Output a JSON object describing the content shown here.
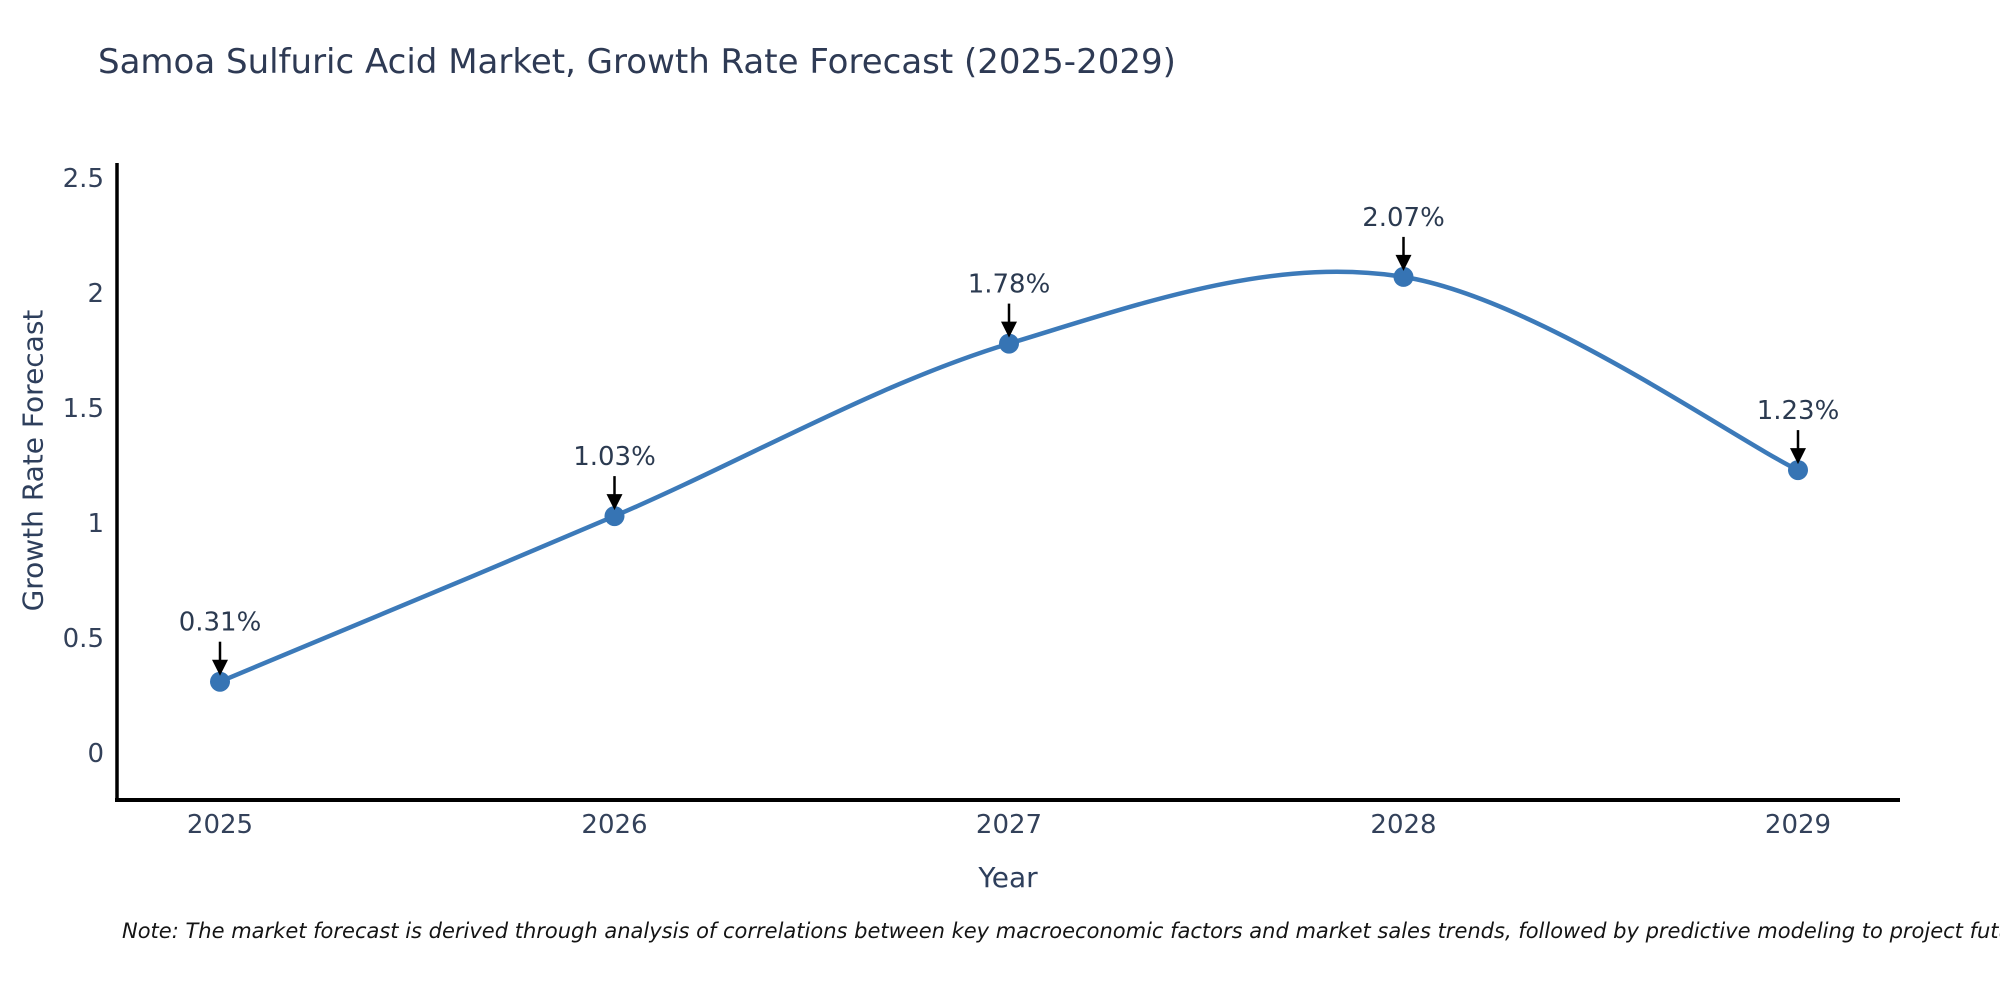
{
  "title": "Samoa Sulfuric Acid Market, Growth Rate Forecast (2025-2029)",
  "note": "Note: The market forecast is derived through analysis of correlations between key macroeconomic factors and market sales trends, followed by predictive modeling to project future sales",
  "chart_data": {
    "type": "line",
    "curve": "spline",
    "x": [
      2025,
      2026,
      2027,
      2028,
      2029
    ],
    "xtick_labels": [
      "2025",
      "2026",
      "2027",
      "2028",
      "2029"
    ],
    "series": [
      {
        "name": "Growth Rate Forecast",
        "values": [
          0.31,
          1.03,
          1.78,
          2.07,
          1.23
        ]
      }
    ],
    "point_labels": [
      "0.31%",
      "1.03%",
      "1.78%",
      "2.07%",
      "1.23%"
    ],
    "title": "Samoa Sulfuric Acid Market, Growth Rate Forecast (2025-2029)",
    "xlabel": "Year",
    "ylabel": "Growth Rate Forecast",
    "ylim": [
      0,
      2.5
    ],
    "yticks": [
      0,
      0.5,
      1,
      1.5,
      2,
      2.5
    ],
    "ytick_labels": [
      "0",
      "0.5",
      "1",
      "1.5",
      "2",
      "2.5"
    ],
    "grid": false,
    "legend": "none",
    "line_color": "#3c7ab9",
    "marker_color": "#3674b4",
    "annotation_arrow_color": "#000000",
    "annotation_text_color": "#2b3a50",
    "axis_line_color": "#000000",
    "tick_text_color": "#33415a"
  }
}
